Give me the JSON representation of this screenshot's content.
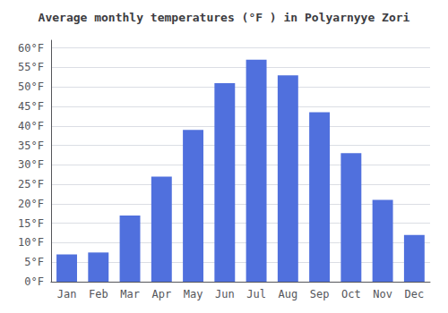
{
  "chart_data": {
    "type": "bar",
    "title": "Average monthly temperatures (°F ) in Polyarnyye Zori",
    "categories": [
      "Jan",
      "Feb",
      "Mar",
      "Apr",
      "May",
      "Jun",
      "Jul",
      "Aug",
      "Sep",
      "Oct",
      "Nov",
      "Dec"
    ],
    "values": [
      7,
      7.5,
      17,
      27,
      39,
      51,
      57,
      53,
      43.5,
      33,
      21,
      12
    ],
    "ylim": [
      0,
      62
    ],
    "yticks": [
      {
        "value": 0,
        "label": "0°F"
      },
      {
        "value": 5,
        "label": "5°F"
      },
      {
        "value": 10,
        "label": "10°F"
      },
      {
        "value": 15,
        "label": "15°F"
      },
      {
        "value": 20,
        "label": "20°F"
      },
      {
        "value": 25,
        "label": "25°F"
      },
      {
        "value": 30,
        "label": "30°F"
      },
      {
        "value": 35,
        "label": "35°F"
      },
      {
        "value": 40,
        "label": "40°F"
      },
      {
        "value": 45,
        "label": "45°F"
      },
      {
        "value": 50,
        "label": "50°F"
      },
      {
        "value": 55,
        "label": "55°F"
      },
      {
        "value": 60,
        "label": "60°F"
      }
    ],
    "grid": true
  }
}
